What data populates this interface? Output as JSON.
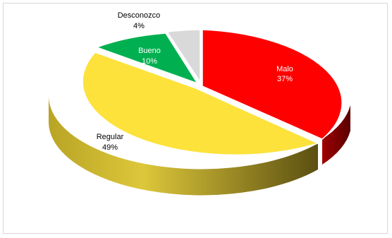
{
  "chart_data": {
    "type": "pie",
    "title": "",
    "style": "3d-exploded",
    "slices": [
      {
        "label": "Malo",
        "percent_label": "37%",
        "value": 37,
        "color": "#ff0000",
        "side_color": "#7a0000",
        "label_color": "#ffffff"
      },
      {
        "label": "Regular",
        "percent_label": "49%",
        "value": 49,
        "color": "#fde23c",
        "side_color": "#8a7f1d",
        "label_color": "#000000"
      },
      {
        "label": "Bueno",
        "percent_label": "10%",
        "value": 10,
        "color": "#00b050",
        "side_color": "#005d2a",
        "label_color": "#ffffff"
      },
      {
        "label": "Desconozco",
        "percent_label": "4%",
        "value": 4,
        "color": "#d9d9d9",
        "side_color": "#7f7f7f",
        "label_color": "#000000"
      }
    ]
  }
}
